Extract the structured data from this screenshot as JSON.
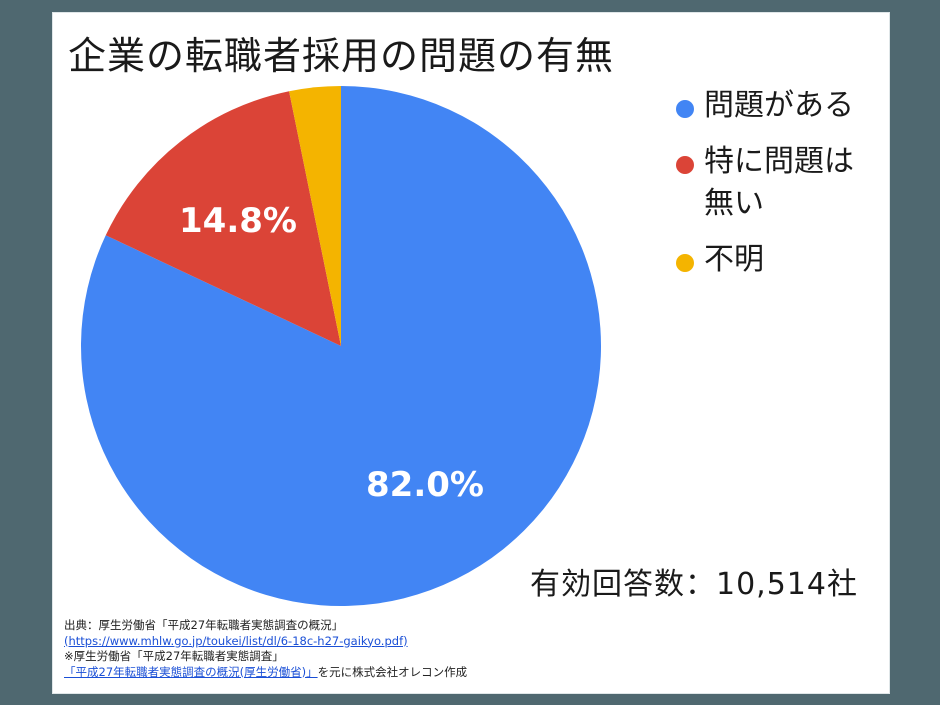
{
  "title": "企業の転職者採用の問題の有無",
  "chart_data": {
    "type": "pie",
    "title": "企業の転職者採用の問題の有無",
    "categories": [
      "問題がある",
      "特に問題は無い",
      "不明"
    ],
    "values": [
      82.0,
      14.8,
      3.2
    ],
    "colors": [
      "#4285f4",
      "#db4437",
      "#f4b400"
    ],
    "data_labels": [
      "82.0%",
      "14.8%",
      ""
    ],
    "start_angle": "12 o'clock",
    "direction": "clockwise",
    "legend_position": "right"
  },
  "slice_labels": {
    "blue": "82.0%",
    "red": "14.8%"
  },
  "legend": [
    {
      "label": "問題がある",
      "color": "#4285f4"
    },
    {
      "label": "特に問題は無い",
      "color": "#db4437"
    },
    {
      "label": "不明",
      "color": "#f4b400"
    }
  ],
  "total": "有効回答数：10,514社",
  "source": {
    "line1": "出典：厚生労働省「平成27年転職者実態調査の概況」",
    "link1": "(https://www.mhlw.go.jp/toukei/list/dl/6-18c-h27-gaikyo.pdf)",
    "line3": "※厚生労働省「平成27年転職者実態調査」",
    "link2": "「平成27年転職者実態調査の概況(厚生労働省)」",
    "line4_suffix": "を元に株式会社オレコン作成"
  }
}
